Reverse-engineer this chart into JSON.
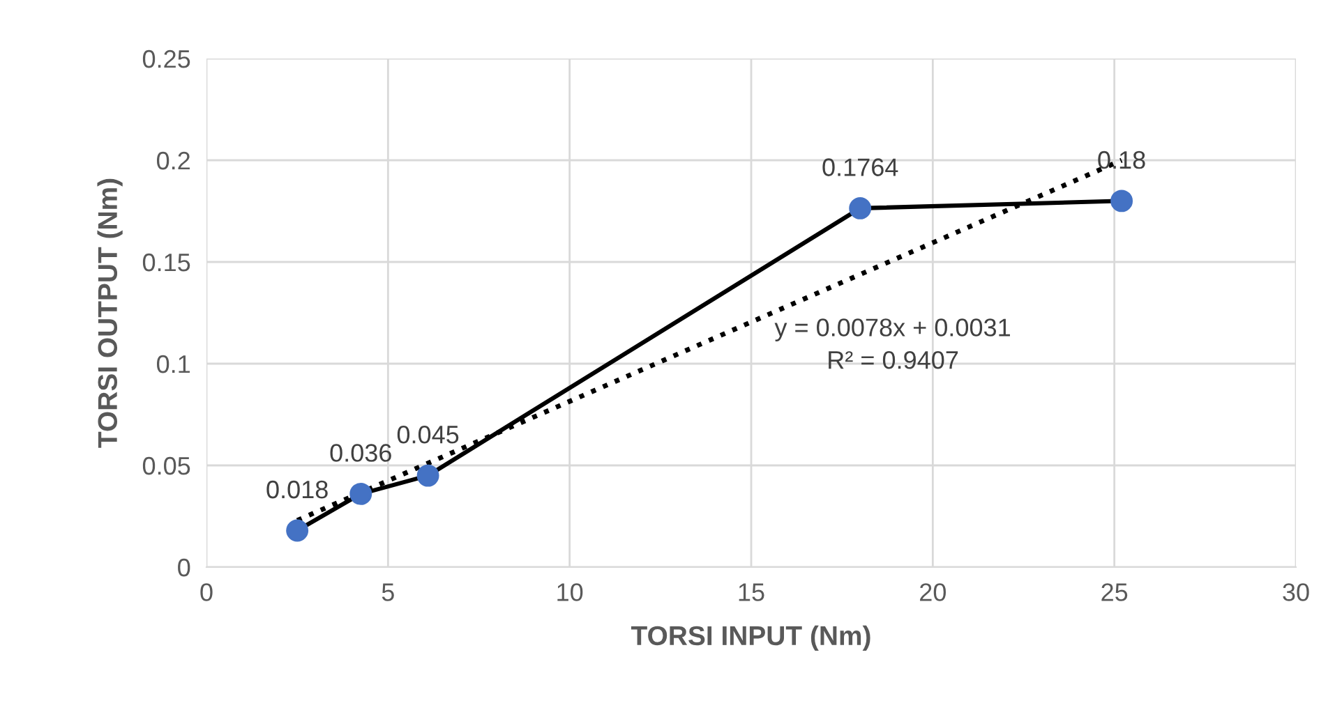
{
  "chart_data": {
    "type": "line",
    "xlabel": "TORSI INPUT (Nm)",
    "ylabel": "TORSI OUTPUT (Nm)",
    "x": [
      2.5,
      4.25,
      6.1,
      18,
      25.2
    ],
    "series": [
      {
        "color": "#000000",
        "colors": [
          "#4472c4",
          "#4472c4",
          "#4472c4",
          "#4472c4",
          "#4472c4"
        ],
        "marker": "circle",
        "line_style": "solid",
        "values": [
          0.018,
          0.036,
          0.045,
          0.1764,
          0.18
        ],
        "value_labels": [
          "0.018",
          "0.036",
          "0.045",
          "0.1764",
          "0.18"
        ]
      },
      {
        "type": "line",
        "color": "#000000",
        "marker": "none",
        "line_style": "dotted",
        "x": [
          2.5,
          25.2
        ],
        "values": [
          0.023,
          0.2
        ]
      }
    ],
    "annotations": [
      "y = 0.0078x + 0.0031\nR² = 0.9407"
    ],
    "xlim": [
      0,
      30
    ],
    "xticks": [
      0,
      5,
      10,
      15,
      20,
      25,
      30
    ],
    "ylim": [
      0,
      0.25
    ],
    "yticks": [
      0,
      0.05,
      0.1,
      0.15,
      0.2,
      0.25
    ],
    "grid": true,
    "legend": false
  }
}
